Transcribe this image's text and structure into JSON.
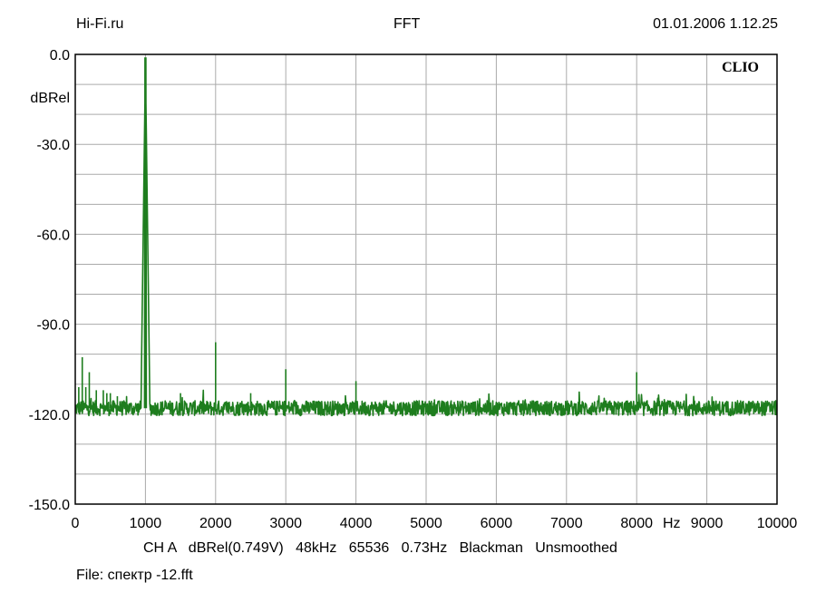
{
  "header": {
    "left": "Hi-Fi.ru",
    "center": "FFT",
    "right": "01.01.2006 1.12.25"
  },
  "brand": "CLIO",
  "footer": {
    "settings": "CH A   dBRel(0.749V)   48kHz   65536   0.73Hz   Blackman   Unsmoothed",
    "file": "File: спектр -12.fft"
  },
  "colors": {
    "trace": "#1e7d1e",
    "grid": "#aaaaaa",
    "frame": "#000000"
  },
  "chart_data": {
    "type": "line",
    "title": "FFT",
    "ylabel": "dBRel",
    "xunit": "Hz",
    "xlim": [
      0,
      10000
    ],
    "ylim": [
      -150,
      0
    ],
    "grid": true,
    "x_ticks": [
      "0",
      "1000",
      "2000",
      "3000",
      "4000",
      "5000",
      "6000",
      "7000",
      "8000",
      "9000",
      "10000"
    ],
    "y_ticks": [
      "0.0",
      "-30.0",
      "-60.0",
      "-90.0",
      "-120.0",
      "-150.0"
    ],
    "noise_floor_db": -118,
    "peaks": [
      {
        "x": 50,
        "y": -111
      },
      {
        "x": 100,
        "y": -101
      },
      {
        "x": 150,
        "y": -111
      },
      {
        "x": 200,
        "y": -106
      },
      {
        "x": 300,
        "y": -112
      },
      {
        "x": 400,
        "y": -112
      },
      {
        "x": 450,
        "y": -113
      },
      {
        "x": 500,
        "y": -113
      },
      {
        "x": 600,
        "y": -114
      },
      {
        "x": 1000,
        "y": -3
      },
      {
        "x": 1500,
        "y": -113
      },
      {
        "x": 2000,
        "y": -96
      },
      {
        "x": 2500,
        "y": -113
      },
      {
        "x": 3000,
        "y": -105
      },
      {
        "x": 4000,
        "y": -109
      },
      {
        "x": 8000,
        "y": -106
      }
    ],
    "series": [
      {
        "values_description": "",
        "color": "#1e7d1e"
      }
    ]
  }
}
